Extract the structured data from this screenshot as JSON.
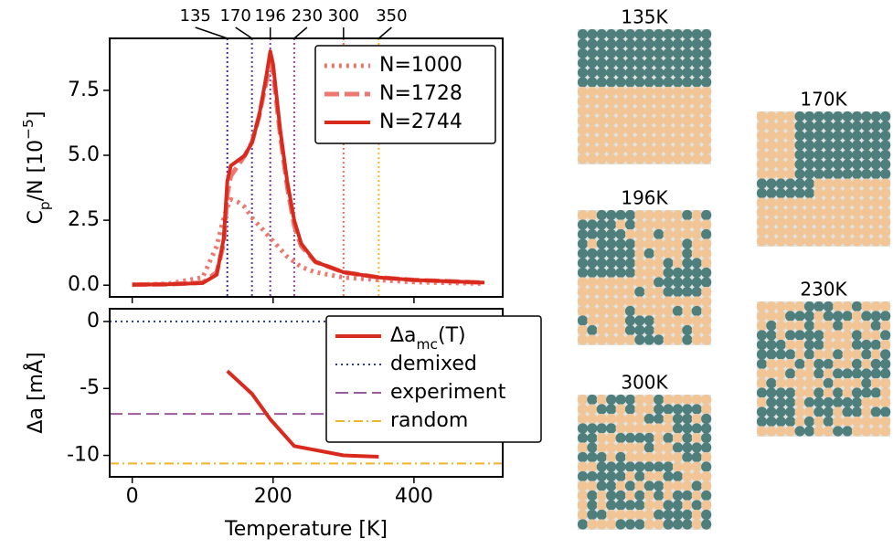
{
  "chart_data": [
    {
      "type": "line",
      "ylabel": [
        "C",
        "p",
        "/N [10",
        "−5",
        "]"
      ],
      "x": [
        0,
        50,
        100,
        120,
        130,
        135,
        140,
        150,
        160,
        170,
        180,
        190,
        196,
        200,
        210,
        220,
        230,
        240,
        260,
        300,
        350,
        400,
        500
      ],
      "series": [
        {
          "name": "N=1000",
          "color": "#ee7770",
          "style": "dotted",
          "values": [
            0.02,
            0.05,
            0.3,
            1.5,
            2.6,
            3.0,
            3.3,
            3.2,
            3.0,
            2.6,
            2.3,
            2.0,
            1.8,
            1.7,
            1.4,
            1.1,
            0.9,
            0.7,
            0.5,
            0.3,
            0.2,
            0.12,
            0.06
          ]
        },
        {
          "name": "N=1728",
          "color": "#ee7770",
          "style": "dashed",
          "values": [
            0.02,
            0.03,
            0.1,
            0.5,
            1.6,
            3.5,
            4.2,
            4.6,
            5.0,
            5.5,
            6.5,
            7.8,
            8.5,
            8.2,
            5.8,
            3.8,
            2.3,
            1.5,
            0.9,
            0.5,
            0.3,
            0.2,
            0.1
          ]
        },
        {
          "name": "N=2744",
          "color": "#d92a1e",
          "style": "solid",
          "values": [
            0.02,
            0.03,
            0.08,
            0.4,
            1.8,
            4.0,
            4.6,
            4.8,
            5.0,
            5.5,
            6.5,
            8.0,
            9.0,
            8.5,
            6.0,
            4.0,
            2.5,
            1.6,
            0.9,
            0.5,
            0.3,
            0.2,
            0.1
          ]
        }
      ],
      "vlines": [
        {
          "value": 135,
          "color": "#3b2f8f"
        },
        {
          "value": 170,
          "color": "#5e3ea0"
        },
        {
          "value": 196,
          "color": "#7d3d9a"
        },
        {
          "value": 230,
          "color": "#a8458f"
        },
        {
          "value": 300,
          "color": "#e8745a"
        },
        {
          "value": 350,
          "color": "#f5b731"
        }
      ],
      "xlim": [
        -32,
        526
      ],
      "ylim": [
        -0.45,
        9.5
      ],
      "yticks": [
        {
          "value": 0,
          "label": "0.0"
        },
        2.5,
        {
          "value": 5,
          "label": "5.0"
        },
        7.5
      ],
      "legend": "upper right"
    },
    {
      "type": "line",
      "xlabel": "Temperature [K]",
      "ylabel": "Δa [mÅ]",
      "x": [
        135,
        170,
        196,
        230,
        300,
        350
      ],
      "series": [
        {
          "name": [
            "Δa",
            "mc",
            "(T)"
          ],
          "color": "#d92a1e",
          "style": "solid",
          "values": [
            -3.7,
            -5.4,
            -7.3,
            -9.3,
            -10.0,
            -10.1
          ]
        }
      ],
      "hlines": [
        {
          "name": "demixed",
          "value": 0,
          "color": "#2c3a8c",
          "style": "dotted"
        },
        {
          "name": "experiment",
          "value": -6.9,
          "color": "#9b5a9b",
          "style": "dashed"
        },
        {
          "name": "random",
          "value": -10.6,
          "color": "#f0b429",
          "style": "dashdot"
        }
      ],
      "xlim": [
        -32,
        526
      ],
      "ylim": [
        -11.6,
        0.95
      ],
      "xticks": [
        0,
        200,
        400
      ],
      "yticks": [
        0,
        -5,
        -10
      ],
      "legend": "upper right"
    }
  ],
  "snapshots": [
    {
      "label": "135K"
    },
    {
      "label": "170K"
    },
    {
      "label": "196K"
    },
    {
      "label": "230K"
    },
    {
      "label": "300K"
    }
  ]
}
